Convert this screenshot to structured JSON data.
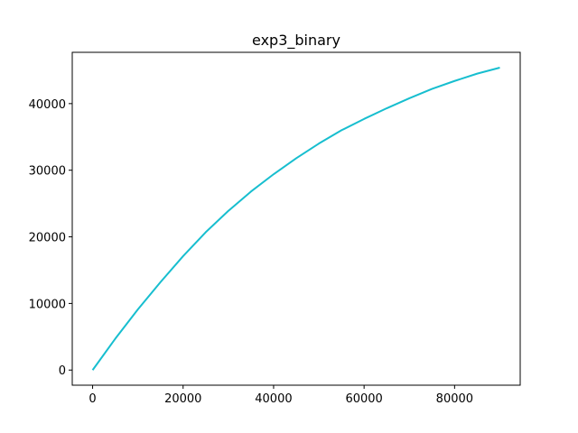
{
  "chart_data": {
    "type": "line",
    "title": "exp3_binary",
    "xlabel": "",
    "ylabel": "",
    "xlim": [
      -4500,
      94500
    ],
    "ylim": [
      -2270,
      47700
    ],
    "xticks": [
      0,
      20000,
      40000,
      60000,
      80000
    ],
    "yticks": [
      0,
      10000,
      20000,
      30000,
      40000
    ],
    "grid": false,
    "series": [
      {
        "color": "#17becf",
        "x": [
          0,
          5000,
          10000,
          15000,
          20000,
          25000,
          30000,
          35000,
          40000,
          45000,
          50000,
          55000,
          60000,
          65000,
          70000,
          75000,
          80000,
          85000,
          90000
        ],
        "y": [
          0,
          4700,
          9100,
          13200,
          17100,
          20700,
          23900,
          26800,
          29400,
          31800,
          34000,
          36000,
          37700,
          39300,
          40800,
          42200,
          43400,
          44500,
          45400
        ]
      }
    ]
  }
}
